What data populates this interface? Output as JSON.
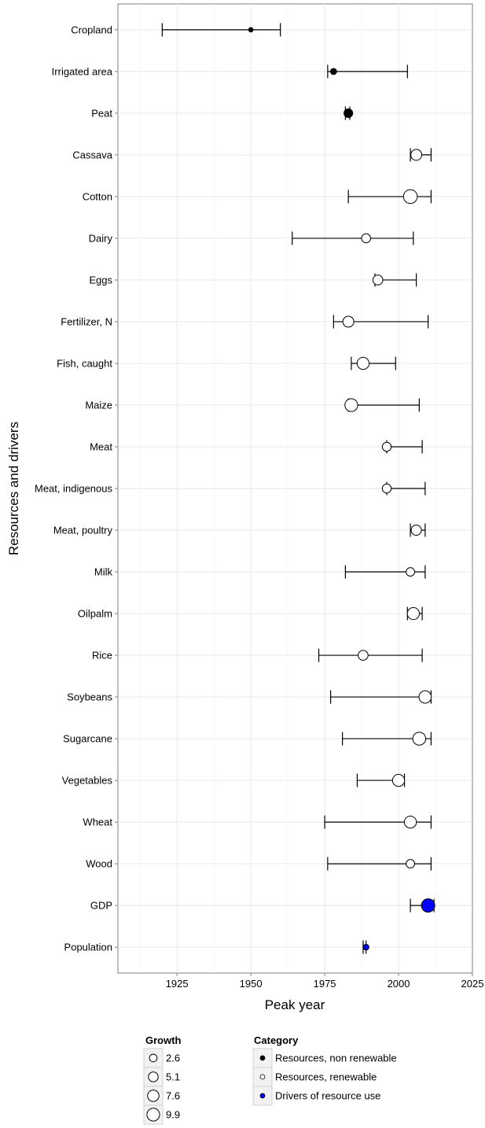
{
  "chart_data": {
    "type": "scatter",
    "title": "",
    "xlabel": "Peak year",
    "ylabel": "Resources and drivers",
    "xlim": [
      1905,
      2025
    ],
    "xticks": [
      1925,
      1950,
      1975,
      2000,
      2025
    ],
    "grid": true,
    "colors": {
      "Resources, non renewable": "#000000",
      "Resources, renewable": "#ffffff",
      "Drivers of resource use": "#0000ff"
    },
    "points": [
      {
        "label": "Cropland",
        "peak": 1950,
        "low": 1920,
        "high": 1960,
        "growth": 0.3,
        "category": "Resources, non renewable"
      },
      {
        "label": "Irrigated area",
        "peak": 1978,
        "low": 1976,
        "high": 2003,
        "growth": 1.0,
        "category": "Resources, non renewable"
      },
      {
        "label": "Peat",
        "peak": 1983,
        "low": 1982,
        "high": 1983.5,
        "growth": 3.0,
        "category": "Resources, non renewable"
      },
      {
        "label": "Cassava",
        "peak": 2006,
        "low": 2004,
        "high": 2011,
        "growth": 5.5,
        "category": "Resources, renewable"
      },
      {
        "label": "Cotton",
        "peak": 2004,
        "low": 1983,
        "high": 2011,
        "growth": 9.9,
        "category": "Resources, renewable"
      },
      {
        "label": "Dairy",
        "peak": 1989,
        "low": 1964,
        "high": 2005,
        "growth": 3.3,
        "category": "Resources, renewable"
      },
      {
        "label": "Eggs",
        "peak": 1993,
        "low": 1992,
        "high": 2006,
        "growth": 4.2,
        "category": "Resources, renewable"
      },
      {
        "label": "Fertilizer, N",
        "peak": 1983,
        "low": 1978,
        "high": 2010,
        "growth": 5.5,
        "category": "Resources, renewable"
      },
      {
        "label": "Fish, caught",
        "peak": 1988,
        "low": 1984,
        "high": 1999,
        "growth": 7.0,
        "category": "Resources, renewable"
      },
      {
        "label": "Maize",
        "peak": 1984,
        "low": 1983,
        "high": 2007,
        "growth": 8.2,
        "category": "Resources, renewable"
      },
      {
        "label": "Meat",
        "peak": 1996,
        "low": 1996,
        "high": 2008,
        "growth": 3.2,
        "category": "Resources, renewable"
      },
      {
        "label": "Meat, indigenous",
        "peak": 1996,
        "low": 1996,
        "high": 2009,
        "growth": 3.2,
        "category": "Resources, renewable"
      },
      {
        "label": "Meat, poultry",
        "peak": 2006,
        "low": 2004,
        "high": 2009,
        "growth": 4.6,
        "category": "Resources, renewable"
      },
      {
        "label": "Milk",
        "peak": 2004,
        "low": 1982,
        "high": 2009,
        "growth": 2.8,
        "category": "Resources, renewable"
      },
      {
        "label": "Oilpalm",
        "peak": 2005,
        "low": 2003,
        "high": 2008,
        "growth": 7.0,
        "category": "Resources, renewable"
      },
      {
        "label": "Rice",
        "peak": 1988,
        "low": 1973,
        "high": 2008,
        "growth": 4.2,
        "category": "Resources, renewable"
      },
      {
        "label": "Soybeans",
        "peak": 2009,
        "low": 1977,
        "high": 2011,
        "growth": 7.6,
        "category": "Resources, renewable"
      },
      {
        "label": "Sugarcane",
        "peak": 2007,
        "low": 1981,
        "high": 2011,
        "growth": 8.4,
        "category": "Resources, renewable"
      },
      {
        "label": "Vegetables",
        "peak": 2000,
        "low": 1986,
        "high": 2002,
        "growth": 7.0,
        "category": "Resources, renewable"
      },
      {
        "label": "Wheat",
        "peak": 2004,
        "low": 1975,
        "high": 2011,
        "growth": 7.0,
        "category": "Resources, renewable"
      },
      {
        "label": "Wood",
        "peak": 2004,
        "low": 1976,
        "high": 2011,
        "growth": 2.8,
        "category": "Resources, renewable"
      },
      {
        "label": "GDP",
        "peak": 2010,
        "low": 2004,
        "high": 2012,
        "growth": 9.0,
        "category": "Drivers of resource use"
      },
      {
        "label": "Population",
        "peak": 1989,
        "low": 1988,
        "high": 1989,
        "growth": 0.8,
        "category": "Drivers of resource use"
      }
    ],
    "legends": {
      "growth": {
        "title": "Growth",
        "entries": [
          "2.6",
          "5.1",
          "7.6",
          "9.9"
        ],
        "values": [
          2.6,
          5.1,
          7.6,
          9.9
        ]
      },
      "category": {
        "title": "Category",
        "entries": [
          "Resources, non renewable",
          "Resources, renewable",
          "Drivers of resource use"
        ]
      }
    }
  }
}
